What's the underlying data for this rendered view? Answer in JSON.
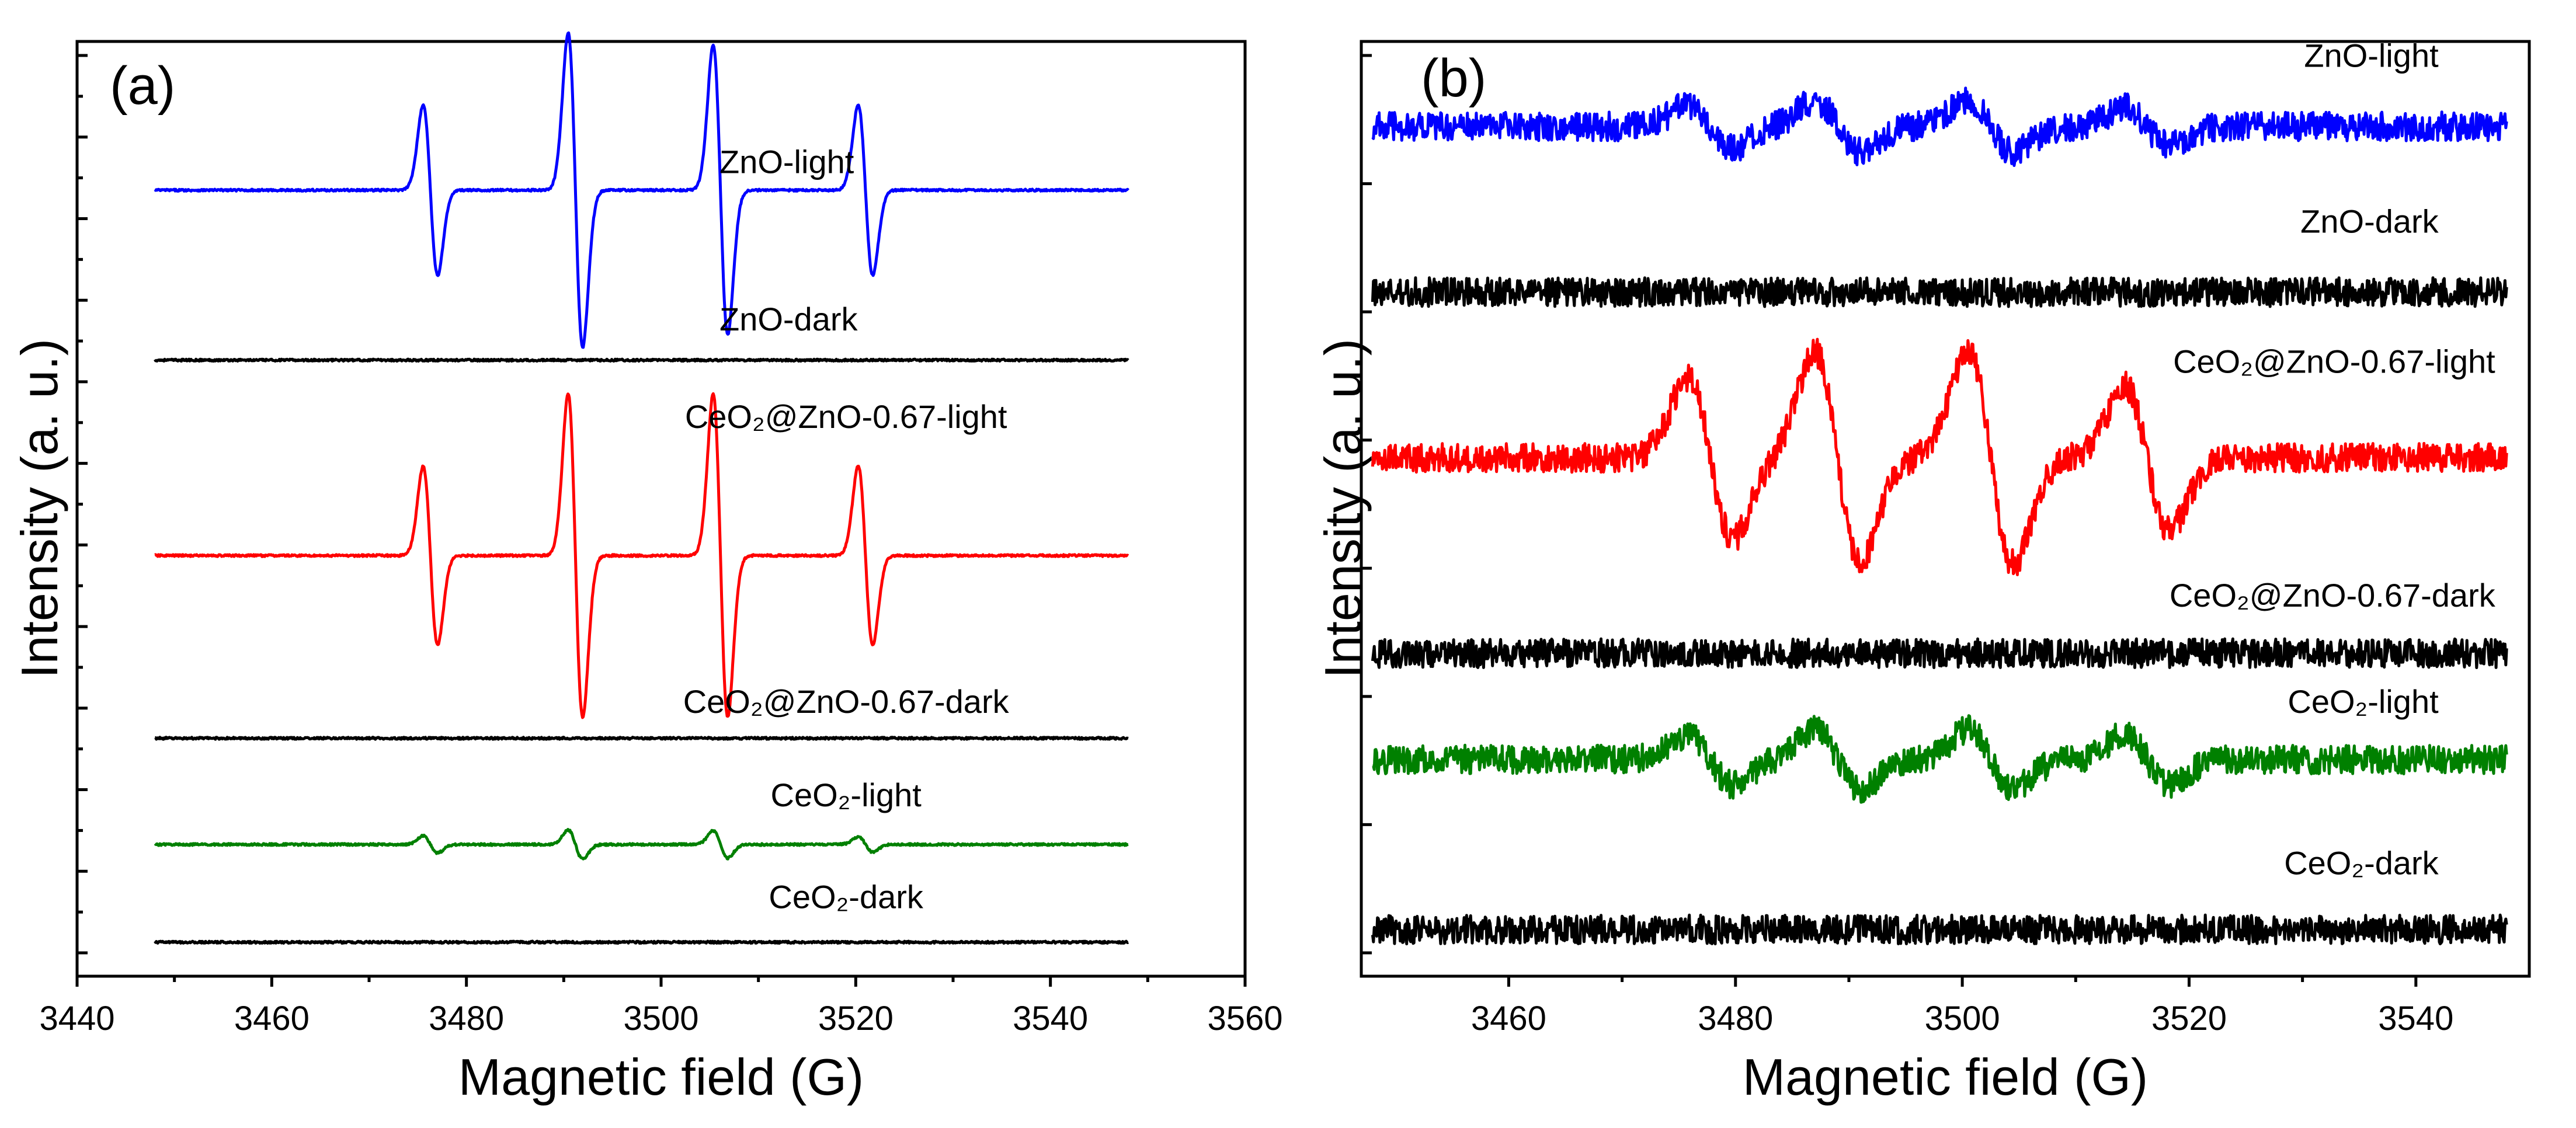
{
  "chart_data": [
    {
      "type": "line",
      "panel": "(a)",
      "xlabel": "Magnetic field (G)",
      "ylabel": "Intensity (a. u.)",
      "xlim": [
        3440,
        3560
      ],
      "ylim": [
        0,
        11
      ],
      "x_ticks": [
        3440,
        3460,
        3480,
        3500,
        3520,
        3540,
        3560
      ],
      "x_tick_labels": [
        "3440",
        "3460",
        "3480",
        "3500",
        "3520",
        "3540",
        "3560"
      ],
      "x_range": [
        3448,
        3548
      ],
      "noise": 0.012,
      "peak_centers": [
        3476.3,
        3491.2,
        3506.1,
        3521.0
      ],
      "peak_width": 0.75,
      "series": [
        {
          "name": "ZnO-light",
          "color": "#0000ff",
          "baseline": 9.25,
          "amplitudes": [
            1.0,
            1.85,
            1.7,
            1.0
          ],
          "label_x": 3506,
          "label_y": 9.45,
          "label_anchor": "start"
        },
        {
          "name": "ZnO-dark",
          "color": "#000000",
          "baseline": 7.25,
          "amplitudes": [
            0,
            0,
            0,
            0
          ],
          "label_x": 3506,
          "label_y": 7.6,
          "label_anchor": "start"
        },
        {
          "name": "CeO₂@ZnO-0.67-light",
          "color": "#ff0000",
          "baseline": 4.95,
          "amplitudes": [
            1.05,
            1.9,
            1.9,
            1.05
          ],
          "label_x": 3519,
          "label_y": 6.45,
          "label_anchor": "middle"
        },
        {
          "name": "CeO₂@ZnO-0.67-dark",
          "color": "#000000",
          "baseline": 2.8,
          "amplitudes": [
            0,
            0,
            0,
            0
          ],
          "label_x": 3519,
          "label_y": 3.1,
          "label_anchor": "middle"
        },
        {
          "name": "CeO₂-light",
          "color": "#008000",
          "baseline": 1.55,
          "amplitudes": [
            0.1,
            0.17,
            0.16,
            0.09
          ],
          "label_x": 3519,
          "label_y": 2.0,
          "label_anchor": "middle"
        },
        {
          "name": "CeO₂-dark",
          "color": "#000000",
          "baseline": 0.4,
          "amplitudes": [
            0,
            0,
            0,
            0
          ],
          "label_x": 3519,
          "label_y": 0.8,
          "label_anchor": "middle"
        }
      ]
    },
    {
      "type": "line",
      "panel": "(b)",
      "xlabel": "Magnetic field (G)",
      "ylabel": "Intensity (a. u.)",
      "xlim": [
        3447,
        3550
      ],
      "ylim": [
        0,
        11
      ],
      "x_ticks": [
        3460,
        3480,
        3500,
        3520,
        3540
      ],
      "x_tick_labels": [
        "3460",
        "3480",
        "3500",
        "3520",
        "3540"
      ],
      "x_range": [
        3448,
        3548
      ],
      "noise": 0.17,
      "peak_centers": [
        3477.8,
        3489.0,
        3502.5,
        3516.3
      ],
      "peak_width": 2.0,
      "series": [
        {
          "name": "ZnO-light",
          "color": "#0000ff",
          "baseline": 10.0,
          "amplitudes": [
            0.25,
            0.3,
            0.3,
            0.22
          ],
          "label_x": 3542,
          "label_y": 10.7,
          "label_anchor": "end"
        },
        {
          "name": "ZnO-dark",
          "color": "#000000",
          "baseline": 8.05,
          "amplitudes": [
            0,
            0,
            0,
            0
          ],
          "label_x": 3542,
          "label_y": 8.75,
          "label_anchor": "end"
        },
        {
          "name": "CeO₂@ZnO-0.67-light",
          "color": "#ff0000",
          "baseline": 6.1,
          "amplitudes": [
            0.95,
            1.25,
            1.25,
            0.85
          ],
          "label_x": 3547,
          "label_y": 7.1,
          "label_anchor": "end"
        },
        {
          "name": "CeO₂@ZnO-0.67-dark",
          "color": "#000000",
          "baseline": 3.8,
          "amplitudes": [
            0,
            0,
            0,
            0
          ],
          "label_x": 3547,
          "label_y": 4.35,
          "label_anchor": "end"
        },
        {
          "name": "CeO₂-light",
          "color": "#008000",
          "baseline": 2.55,
          "amplitudes": [
            0.3,
            0.35,
            0.35,
            0.3
          ],
          "label_x": 3542,
          "label_y": 3.1,
          "label_anchor": "end"
        },
        {
          "name": "CeO₂-dark",
          "color": "#000000",
          "baseline": 0.55,
          "amplitudes": [
            0,
            0,
            0,
            0
          ],
          "label_x": 3542,
          "label_y": 1.2,
          "label_anchor": "end"
        }
      ]
    }
  ]
}
